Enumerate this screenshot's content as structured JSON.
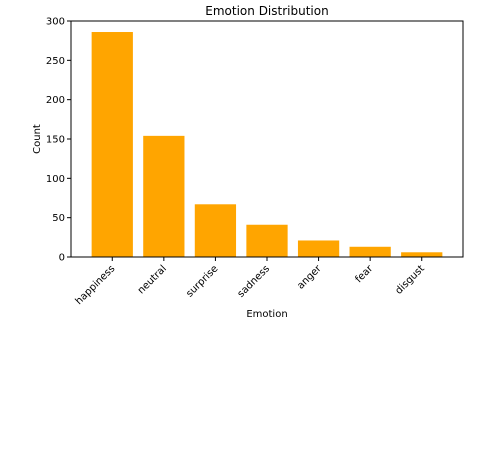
{
  "chart_data": {
    "type": "bar",
    "title": "Emotion Distribution",
    "xlabel": "Emotion",
    "ylabel": "Count",
    "categories": [
      "happiness",
      "neutral",
      "surprise",
      "sadness",
      "anger",
      "fear",
      "disgust"
    ],
    "values": [
      286,
      154,
      67,
      41,
      21,
      13,
      6
    ],
    "ylim": [
      0,
      300
    ],
    "yticks": [
      0,
      50,
      100,
      150,
      200,
      250,
      300
    ],
    "grid": false,
    "bar_color": "#FFA500"
  }
}
